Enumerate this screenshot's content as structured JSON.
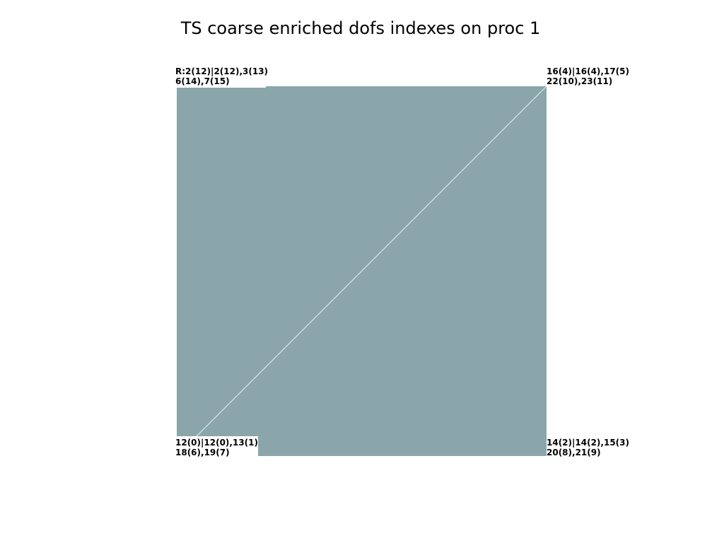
{
  "title": "TS coarse enriched dofs indexes on proc 1",
  "vertex_labels": [
    {
      "lines": [
        "R:2(12)|2(12),3(13)",
        "6(14),7(15)"
      ]
    },
    {
      "lines": [
        "16(4)|16(4),17(5)",
        "22(10),23(11)"
      ]
    },
    {
      "lines": [
        "12(0)|12(0),13(1)",
        "18(6),19(7)"
      ]
    },
    {
      "lines": [
        "14(2)|14(2),15(3)",
        "20(8),21(9)"
      ]
    }
  ]
}
